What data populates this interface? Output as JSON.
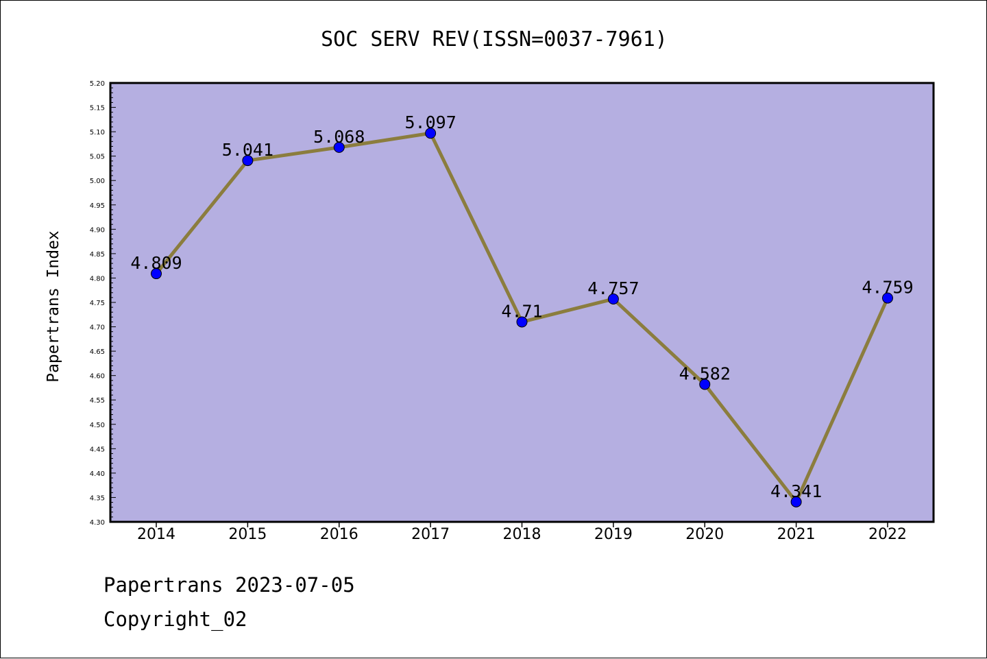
{
  "chart_data": {
    "type": "line",
    "title": "SOC SERV REV(ISSN=0037-7961)",
    "xlabel": "",
    "ylabel": "Papertrans Index",
    "categories": [
      "2014",
      "2015",
      "2016",
      "2017",
      "2018",
      "2019",
      "2020",
      "2021",
      "2022"
    ],
    "series": [
      {
        "values": [
          4.809,
          5.041,
          5.068,
          5.097,
          4.71,
          4.757,
          4.582,
          4.341,
          4.759
        ],
        "labels": [
          "4.809",
          "5.041",
          "5.068",
          "5.097",
          "4.71",
          "4.757",
          "4.582",
          "4.341",
          "4.759"
        ]
      }
    ],
    "ylim": [
      4.3,
      5.2
    ],
    "yticks": [
      "4.30",
      "4.35",
      "4.40",
      "4.45",
      "4.50",
      "4.55",
      "4.60",
      "4.65",
      "4.70",
      "4.75",
      "4.80",
      "4.85",
      "4.90",
      "4.95",
      "5.00",
      "5.05",
      "5.10",
      "5.15",
      "5.20"
    ],
    "grid": false,
    "colors": {
      "plot_background": "#b5afe1",
      "line": "#8b7d3e",
      "marker": "#0000ff"
    }
  },
  "footer": {
    "line1": "Papertrans 2023-07-05",
    "line2": "Copyright_02"
  }
}
